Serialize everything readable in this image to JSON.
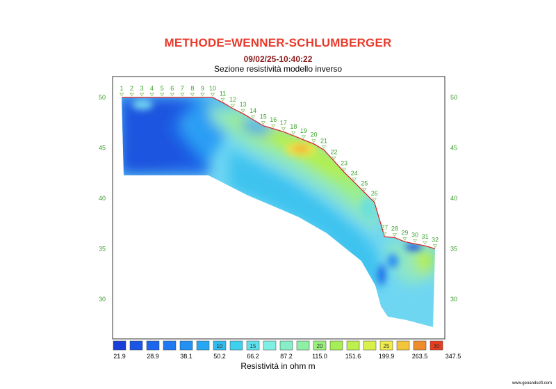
{
  "header": {
    "title": "METHODE=WENNER-SCHLUMBERGER",
    "datetime": "09/02/25-10:40:22",
    "subtitle": "Sezione resistività modello inverso"
  },
  "footer": {
    "units_label": "Resistività in ohm m",
    "website": "www.geoandsoft.com"
  },
  "chart_data": {
    "type": "heatmap",
    "title": "Sezione resistività modello inverso",
    "ylim": [
      25.5,
      51.5
    ],
    "yticks": [
      50,
      45,
      40,
      35,
      30
    ],
    "grid": false,
    "electrodes": {
      "labels": [
        "1",
        "2",
        "3",
        "4",
        "5",
        "6",
        "7",
        "8",
        "9",
        "10",
        "11",
        "12",
        "13",
        "14",
        "15",
        "16",
        "17",
        "18",
        "19",
        "20",
        "21",
        "22",
        "23",
        "24",
        "25",
        "26",
        "27",
        "28",
        "29",
        "30",
        "31",
        "32"
      ],
      "elevation": [
        50.0,
        50.0,
        50.0,
        50.0,
        50.0,
        50.0,
        50.0,
        50.0,
        50.0,
        50.0,
        49.5,
        48.9,
        48.4,
        47.8,
        47.2,
        46.9,
        46.6,
        46.2,
        45.8,
        45.4,
        44.8,
        43.7,
        42.6,
        41.6,
        40.6,
        39.6,
        36.2,
        36.1,
        35.7,
        35.5,
        35.3,
        35.0
      ]
    },
    "legend": {
      "colors": [
        "#1a3fd8",
        "#1a55e6",
        "#1c66ee",
        "#1f7af2",
        "#2390f4",
        "#27a7f3",
        "#2fbcf0",
        "#3fd0ee",
        "#5ee2ee",
        "#7fefe6",
        "#86eec8",
        "#8ef0a4",
        "#9af07e",
        "#a6ee55",
        "#bdf04c",
        "#d8f04a",
        "#f0ec4a",
        "#f2c53a",
        "#ee8c2c",
        "#ea3c1e"
      ],
      "inside_labels": [
        "10",
        "15",
        "20",
        "25",
        "30"
      ],
      "inside_index": [
        6,
        8,
        12,
        16,
        19
      ],
      "value_labels": [
        "21.9",
        "28.9",
        "38.1",
        "50.2",
        "66.2",
        "87.2",
        "115.0",
        "151.6",
        "199.9",
        "263.5",
        "347.5"
      ]
    }
  }
}
